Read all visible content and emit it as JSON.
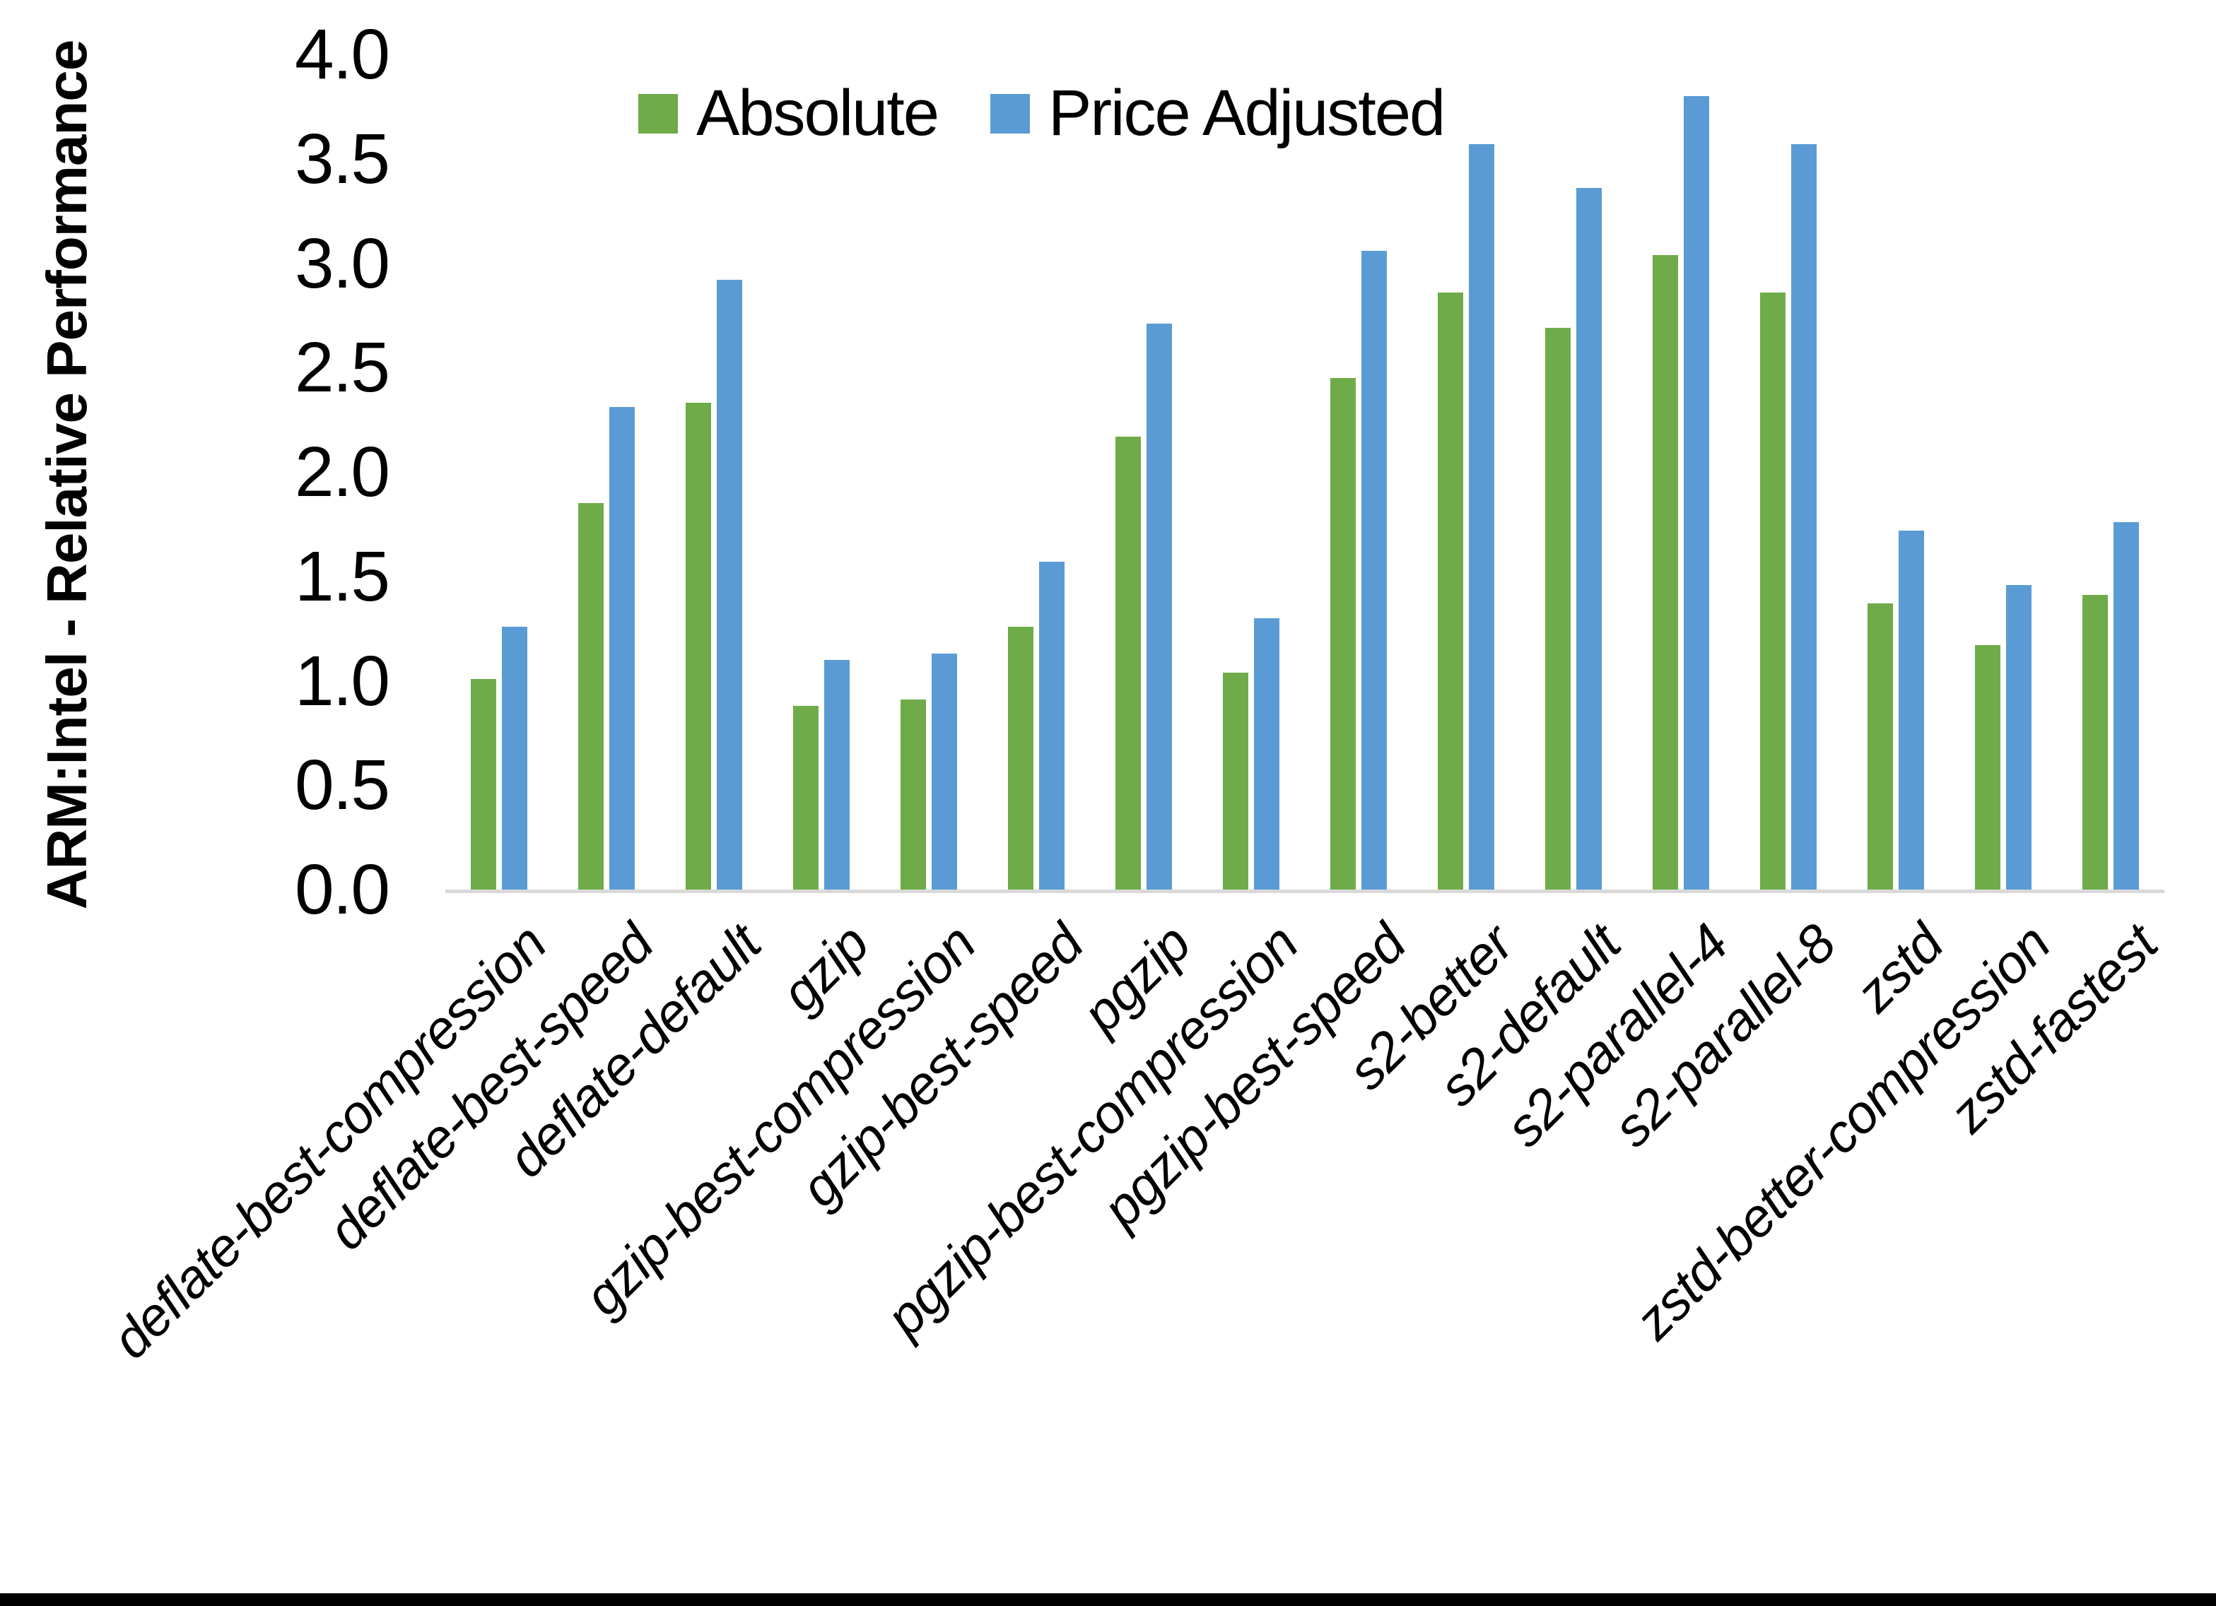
{
  "y_axis": {
    "title": "ARM:Intel - Relative Performance",
    "tick_labels": [
      "0.0",
      "0.5",
      "1.0",
      "1.5",
      "2.0",
      "2.5",
      "3.0",
      "3.5",
      "4.0"
    ]
  },
  "legend": {
    "items": [
      {
        "label": "Absolute",
        "color": "#6FAC49"
      },
      {
        "label": "Price Adjusted",
        "color": "#5B9BD5"
      }
    ]
  },
  "chart_data": {
    "type": "bar",
    "title": "",
    "xlabel": "",
    "ylabel": "ARM:Intel - Relative Performance",
    "ylim": [
      0.0,
      4.0
    ],
    "ytick_step": 0.5,
    "grid": false,
    "legend_position": "top-center",
    "categories": [
      "deflate-best-compression",
      "deflate-best-speed",
      "deflate-default",
      "gzip",
      "gzip-best-compression",
      "gzip-best-speed",
      "pgzip",
      "pgzip-best-compression",
      "pgzip-best-speed",
      "s2-better",
      "s2-default",
      "s2-parallel-4",
      "s2-parallel-8",
      "zstd",
      "zstd-better-compression",
      "zstd-fastest"
    ],
    "series": [
      {
        "name": "Absolute",
        "color": "#6FAC49",
        "values": [
          1.01,
          1.85,
          2.33,
          0.88,
          0.91,
          1.26,
          2.17,
          1.04,
          2.45,
          2.86,
          2.69,
          3.04,
          2.86,
          1.37,
          1.17,
          1.41
        ]
      },
      {
        "name": "Price Adjusted",
        "color": "#5B9BD5",
        "values": [
          1.26,
          2.31,
          2.92,
          1.1,
          1.13,
          1.57,
          2.71,
          1.3,
          3.06,
          3.57,
          3.36,
          3.8,
          3.57,
          1.72,
          1.46,
          1.76
        ]
      }
    ]
  }
}
